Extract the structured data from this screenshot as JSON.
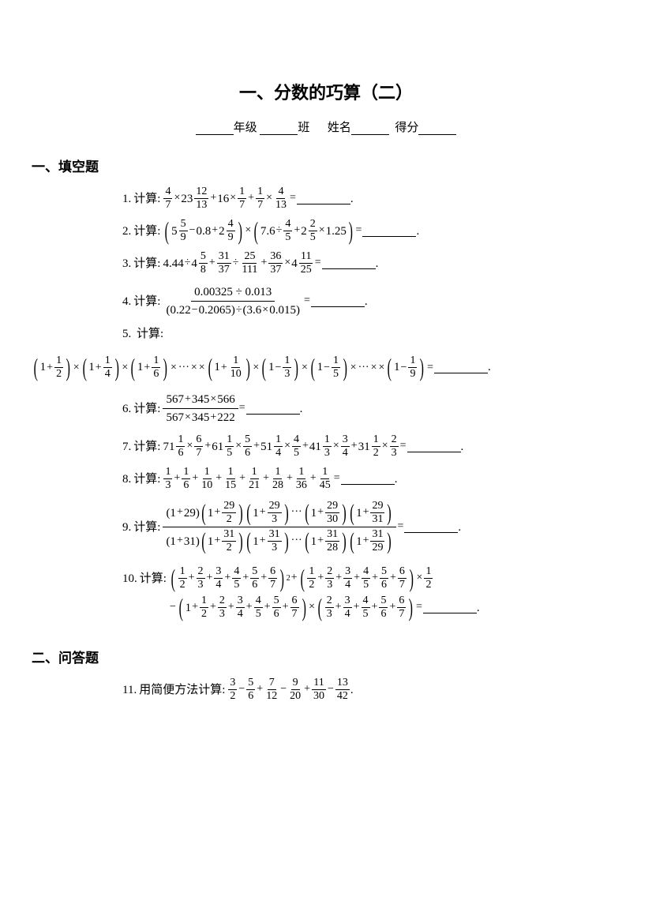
{
  "title": "一、分数的巧算（二）",
  "info": {
    "grade_label": "年级",
    "class_label": "班",
    "name_label": "姓名",
    "score_label": "得分"
  },
  "section1_header": "一、填空题",
  "section2_header": "二、问答题",
  "calc_label": "计算",
  "calc_short_method": "用简便方法计算",
  "problems": {
    "p1": {
      "n": "1.",
      "f1": {
        "n": "4",
        "d": "7"
      },
      "m1": {
        "w": "23",
        "n": "12",
        "d": "13"
      },
      "c1": "16",
      "f2": {
        "n": "1",
        "d": "7"
      },
      "f3": {
        "n": "1",
        "d": "7"
      },
      "f4": {
        "n": "4",
        "d": "13"
      }
    },
    "p2": {
      "n": "2.",
      "m1": {
        "w": "5",
        "n": "5",
        "d": "9"
      },
      "c1": "0.8",
      "m2": {
        "w": "2",
        "n": "4",
        "d": "9"
      },
      "c2": "7.6",
      "f1": {
        "n": "4",
        "d": "5"
      },
      "m3": {
        "w": "2",
        "n": "2",
        "d": "5"
      },
      "c3": "1.25"
    },
    "p3": {
      "n": "3.",
      "c1": "4.44",
      "m1": {
        "w": "4",
        "n": "5",
        "d": "8"
      },
      "f1": {
        "n": "31",
        "d": "37"
      },
      "f2": {
        "n": "25",
        "d": "111"
      },
      "f3": {
        "n": "36",
        "d": "37"
      },
      "m2": {
        "w": "4",
        "n": "11",
        "d": "25"
      }
    },
    "p4": {
      "n": "4.",
      "num": "0.00325 ÷ 0.013",
      "den1": "0.22",
      "den2": "0.2065",
      "den3": "3.6",
      "den4": "0.015"
    },
    "p5": {
      "n": "5.",
      "terms": [
        {
          "op": "+",
          "d": "2"
        },
        {
          "op": "+",
          "d": "4"
        },
        {
          "op": "+",
          "d": "6"
        },
        {
          "dots": true
        },
        {
          "op": "+",
          "d": "10"
        },
        {
          "op": "−",
          "d": "3"
        },
        {
          "op": "−",
          "d": "5"
        },
        {
          "dots": true
        },
        {
          "op": "−",
          "d": "9"
        }
      ]
    },
    "p6": {
      "n": "6.",
      "num_a": "567",
      "num_b": "345",
      "num_c": "566",
      "den_a": "567",
      "den_b": "345",
      "den_c": "222"
    },
    "p7": {
      "n": "7.",
      "terms": [
        {
          "w": "71",
          "wn": "1",
          "wd": "6",
          "fn": "6",
          "fd": "7"
        },
        {
          "w": "61",
          "wn": "1",
          "wd": "5",
          "fn": "5",
          "fd": "6"
        },
        {
          "w": "51",
          "wn": "1",
          "wd": "4",
          "fn": "4",
          "fd": "5"
        },
        {
          "w": "41",
          "wn": "1",
          "wd": "3",
          "fn": "3",
          "fd": "4"
        },
        {
          "w": "31",
          "wn": "1",
          "wd": "2",
          "fn": "2",
          "fd": "3"
        }
      ]
    },
    "p8": {
      "n": "8.",
      "dens": [
        "3",
        "6",
        "10",
        "15",
        "21",
        "28",
        "36",
        "45"
      ]
    },
    "p9": {
      "n": "9.",
      "num_first": "29",
      "num_terms": [
        "2",
        "3"
      ],
      "num_dots": true,
      "num_last": [
        "30",
        "31"
      ],
      "den_first": "31",
      "den_terms": [
        "2",
        "3"
      ],
      "den_dots": true,
      "den_last": [
        "28",
        "29"
      ],
      "top_n": "29",
      "bot_n": "31"
    },
    "p10": {
      "n": "10.",
      "series": [
        "2",
        "3",
        "4",
        "5",
        "6",
        "7"
      ],
      "nums": [
        "1",
        "2",
        "3",
        "4",
        "5",
        "6"
      ],
      "extra": "2",
      "line2_series_a": [
        "2",
        "3",
        "4",
        "5",
        "6",
        "7"
      ],
      "line2_nums_a": [
        "1",
        "2",
        "3",
        "4",
        "5",
        "6"
      ],
      "line2_series_b": [
        "3",
        "4",
        "5",
        "6",
        "7"
      ],
      "line2_nums_b": [
        "2",
        "3",
        "4",
        "5",
        "6"
      ]
    },
    "p11": {
      "n": "11.",
      "terms": [
        {
          "n": "3",
          "d": "2"
        },
        {
          "n": "5",
          "d": "6"
        },
        {
          "n": "7",
          "d": "12"
        },
        {
          "n": "9",
          "d": "20"
        },
        {
          "n": "11",
          "d": "30"
        },
        {
          "n": "13",
          "d": "42"
        }
      ]
    }
  },
  "colors": {
    "text": "#000000",
    "bg": "#ffffff"
  }
}
